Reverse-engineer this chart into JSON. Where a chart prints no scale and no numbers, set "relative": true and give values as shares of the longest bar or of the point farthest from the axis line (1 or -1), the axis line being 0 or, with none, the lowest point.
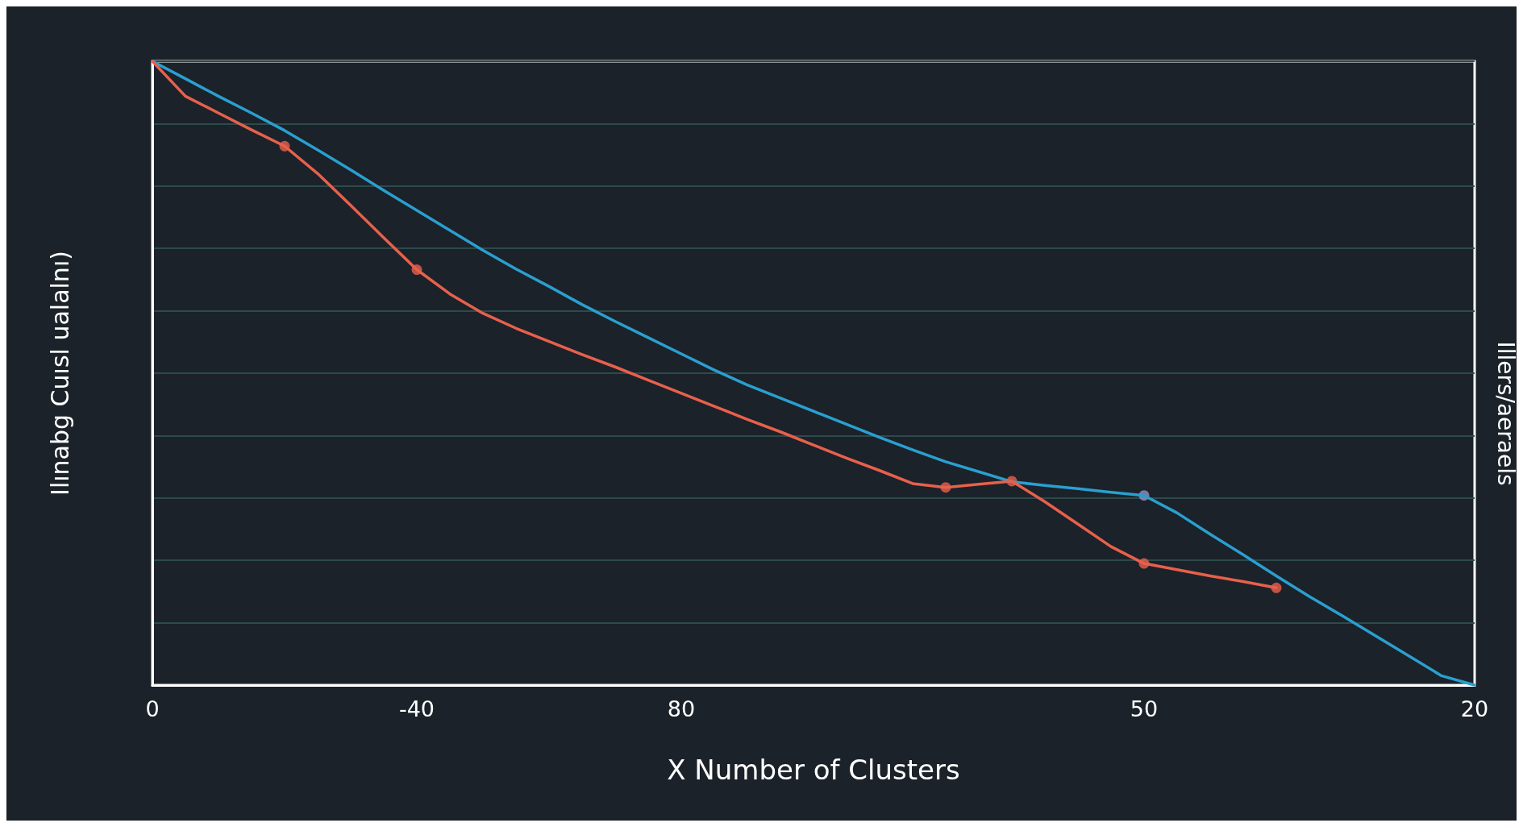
{
  "chart_data": {
    "type": "line",
    "relative": true,
    "xlabel": "X Number of Clusters",
    "ylabel": "Ilınabg Cuısl ualalnı)",
    "y2label": "Illers/aeraels",
    "categories": [
      "0",
      null,
      null,
      null,
      null,
      null,
      null,
      null,
      "-40",
      null,
      null,
      null,
      null,
      null,
      null,
      null,
      "80",
      null,
      null,
      null,
      null,
      null,
      null,
      null,
      null,
      null,
      null,
      null,
      null,
      null,
      "50",
      null,
      null,
      null,
      null,
      null,
      null,
      null,
      null,
      null,
      "20"
    ],
    "grid": "y",
    "marker": "none",
    "line_style": "solid",
    "series": [
      {
        "color": "#2a9fd0",
        "values": [
          1,
          0.972,
          0.944,
          0.917,
          0.889,
          0.858,
          0.826,
          0.793,
          0.761,
          0.729,
          0.697,
          0.667,
          0.639,
          0.61,
          0.583,
          0.557,
          0.531,
          0.505,
          0.481,
          0.46,
          0.439,
          0.418,
          0.397,
          0.377,
          0.358,
          0.342,
          0.326,
          0.32,
          0.315,
          0.309,
          0.304,
          0.276,
          0.242,
          0.209,
          0.175,
          0.142,
          0.111,
          0.079,
          0.047,
          0.015,
          0
        ]
      },
      {
        "color": "#e8604c",
        "values": [
          1,
          0.944,
          0.917,
          0.89,
          0.864,
          0.82,
          0.769,
          0.717,
          0.666,
          0.627,
          0.596,
          0.572,
          0.551,
          0.53,
          0.51,
          0.489,
          0.468,
          0.447,
          0.426,
          0.406,
          0.385,
          0.364,
          0.344,
          0.323,
          0.317,
          0.322,
          0.327,
          0.294,
          0.258,
          0.222,
          0.195,
          0.185,
          0.175,
          0.166,
          0.156,
          null,
          null,
          null,
          null,
          null,
          null
        ]
      },
      {
        "type": "scatter",
        "color": "#e8604c",
        "marker": "circle",
        "values": [
          null,
          null,
          null,
          null,
          0.864,
          null,
          null,
          null,
          0.666,
          null,
          null,
          null,
          null,
          null,
          null,
          null,
          null,
          null,
          null,
          null,
          null,
          null,
          null,
          null,
          0.317,
          null,
          0.327,
          null,
          null,
          null,
          0.195,
          null,
          null,
          null,
          0.156,
          null,
          null,
          null,
          null,
          null,
          null
        ]
      },
      {
        "type": "scatter",
        "color": "#9a8fc0",
        "marker": "circle",
        "values": [
          null,
          null,
          null,
          null,
          null,
          null,
          null,
          null,
          null,
          null,
          null,
          null,
          null,
          null,
          null,
          null,
          null,
          null,
          null,
          null,
          null,
          null,
          null,
          null,
          null,
          null,
          null,
          null,
          null,
          null,
          0.304,
          null,
          null,
          null,
          null,
          null,
          null,
          null,
          null,
          null,
          null
        ]
      }
    ]
  }
}
